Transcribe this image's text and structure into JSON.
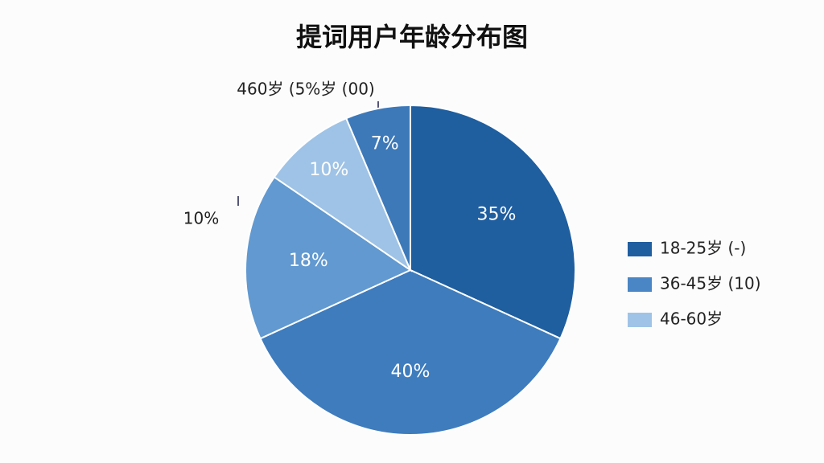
{
  "chart_data": {
    "type": "pie",
    "title": "提词用户年龄分布图",
    "values": [
      35,
      40,
      18,
      10,
      7
    ],
    "value_labels": [
      "35%",
      "40%",
      "18%",
      "10%",
      "7%"
    ],
    "colors": [
      "#1f5e9f",
      "#3e7cbd",
      "#6199d0",
      "#9fc3e6",
      "#3d79b9"
    ],
    "annotations": [
      "460岁 (5%岁 (00)",
      "10%"
    ],
    "legend": [
      {
        "name": "18-25岁 (-)",
        "color": "#1f5e9f"
      },
      {
        "name": "36-45岁 (10)",
        "color": "#4a85c5"
      },
      {
        "name": "46-60岁",
        "color": "#9fc3e6"
      }
    ]
  }
}
